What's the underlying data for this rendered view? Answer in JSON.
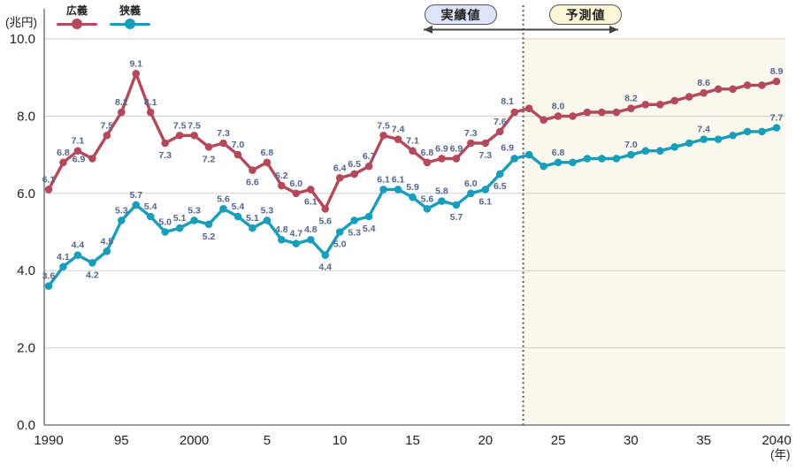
{
  "chart_data": {
    "type": "line",
    "title": "",
    "ylabel": "(兆円)",
    "xlabel": "(年)",
    "ylim": [
      0,
      10
    ],
    "grid": "horizontal",
    "legend_position": "top-left",
    "y_ticks": [
      {
        "value": 0,
        "label": "0.0"
      },
      {
        "value": 2,
        "label": "2.0"
      },
      {
        "value": 4,
        "label": "4.0"
      },
      {
        "value": 6,
        "label": "6.0"
      },
      {
        "value": 8,
        "label": "8.0"
      },
      {
        "value": 10,
        "label": "10.0"
      }
    ],
    "x_start_year": 1990,
    "x_end_year": 2040,
    "x_ticks": [
      {
        "index": 0,
        "label": "1990"
      },
      {
        "index": 5,
        "label": "95"
      },
      {
        "index": 10,
        "label": "2000"
      },
      {
        "index": 15,
        "label": "5"
      },
      {
        "index": 20,
        "label": "10"
      },
      {
        "index": 25,
        "label": "15"
      },
      {
        "index": 30,
        "label": "20"
      },
      {
        "index": 35,
        "label": "25"
      },
      {
        "index": 40,
        "label": "30"
      },
      {
        "index": 45,
        "label": "35"
      },
      {
        "index": 50,
        "label": "2040"
      }
    ],
    "series": [
      {
        "id": "broad",
        "name": "広義",
        "color": "#b5495c",
        "values": [
          6.1,
          6.8,
          7.1,
          6.9,
          7.5,
          8.1,
          9.1,
          8.1,
          7.3,
          7.5,
          7.5,
          7.2,
          7.3,
          7.0,
          6.6,
          6.8,
          6.2,
          6.0,
          6.1,
          5.6,
          6.4,
          6.5,
          6.7,
          7.5,
          7.4,
          7.1,
          6.8,
          6.9,
          6.9,
          7.3,
          7.3,
          7.6,
          8.1,
          8.2,
          7.9,
          8.0,
          8.0,
          8.1,
          8.1,
          8.1,
          8.2,
          8.3,
          8.3,
          8.4,
          8.5,
          8.6,
          8.7,
          8.7,
          8.8,
          8.8,
          8.9
        ],
        "label_sides": [
          "a",
          "a",
          "a",
          "l",
          "a",
          "a",
          "a",
          "a",
          "b",
          "a",
          "a",
          "b",
          "a",
          "a",
          "b",
          "a",
          "a",
          "a",
          "b",
          "b",
          "a",
          "a",
          "a",
          "a",
          "a",
          "a",
          "a",
          "a",
          "a",
          "a",
          "b",
          "a",
          "al",
          "",
          "",
          "a",
          "",
          "",
          "",
          "",
          "a",
          "",
          "",
          "",
          "",
          "a",
          "",
          "",
          "",
          "",
          "a"
        ]
      },
      {
        "id": "narrow",
        "name": "狭義",
        "color": "#189eba",
        "values": [
          3.6,
          4.1,
          4.4,
          4.2,
          4.5,
          5.3,
          5.7,
          5.4,
          5.0,
          5.1,
          5.3,
          5.2,
          5.6,
          5.4,
          5.1,
          5.3,
          4.8,
          4.7,
          4.8,
          4.4,
          5.0,
          5.3,
          5.4,
          6.1,
          6.1,
          5.9,
          5.6,
          5.8,
          5.7,
          6.0,
          6.1,
          6.5,
          6.9,
          7.0,
          6.7,
          6.8,
          6.8,
          6.9,
          6.9,
          6.9,
          7.0,
          7.1,
          7.1,
          7.2,
          7.3,
          7.4,
          7.4,
          7.5,
          7.6,
          7.6,
          7.7
        ],
        "label_sides": [
          "a",
          "a",
          "a",
          "b",
          "a",
          "a",
          "a",
          "a",
          "a",
          "a",
          "a",
          "b",
          "a",
          "a",
          "a",
          "a",
          "a",
          "a",
          "a",
          "b",
          "b",
          "b",
          "b",
          "a",
          "a",
          "a",
          "a",
          "a",
          "b",
          "a",
          "b",
          "b",
          "al",
          "",
          "",
          "a",
          "",
          "",
          "",
          "",
          "a",
          "",
          "",
          "",
          "",
          "a",
          "",
          "",
          "",
          "",
          "a"
        ]
      }
    ],
    "divider": {
      "year_index": 32.6,
      "style": "dotted",
      "color": "#555555"
    },
    "regions": {
      "actual_label": "実績値",
      "forecast_label": "予測値",
      "actual_badge_bg": "#dee4f7",
      "forecast_badge_bg": "#faf5d6",
      "forecast_bg": "#fbf9ed"
    },
    "data_label_color": "#53648e"
  }
}
